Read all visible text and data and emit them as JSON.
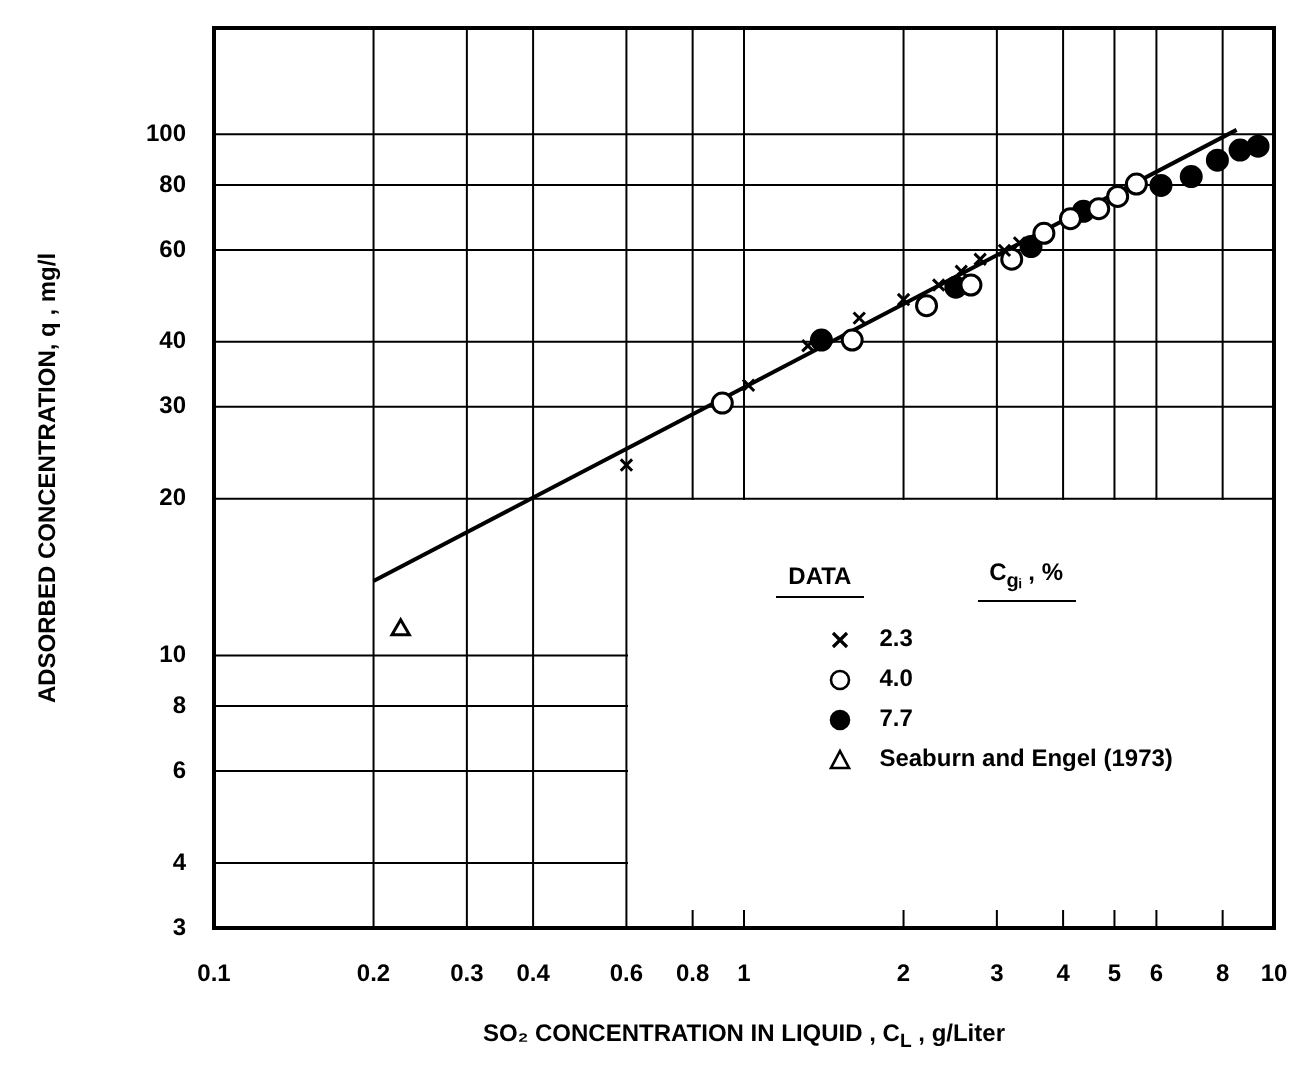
{
  "chart_data": {
    "type": "scatter",
    "xlabel": "SO₂ CONCENTRATION IN LIQUID , C$_{L}$ , g/Liter",
    "ylabel": "ADSORBED CONCENTRATION, q , mg/l",
    "legend_title": "DATA",
    "annotations": [
      "C$_{gᵢ}$ , %"
    ],
    "log": "xy",
    "grid": true,
    "legend": "bottom right",
    "xlim": [
      0.1,
      10
    ],
    "xticks": [
      0.1,
      0.2,
      0.3,
      0.4,
      0.6,
      0.8,
      1,
      2,
      3,
      4,
      5,
      6,
      8,
      10
    ],
    "ylim": [
      3,
      160
    ],
    "yticks": [
      3,
      4,
      6,
      8,
      10,
      20,
      30,
      40,
      60,
      80,
      100
    ],
    "series": [
      {
        "name": "2.3",
        "color": "#000000",
        "marker": "cross",
        "x": [
          0.6,
          1.02,
          1.32,
          1.65,
          2.0,
          2.33,
          2.57,
          2.79,
          3.1,
          3.31
        ],
        "values": [
          23.2,
          33,
          39.3,
          44.4,
          48.2,
          51.4,
          54.6,
          57.6,
          59.9,
          61.9
        ]
      },
      {
        "name": "4.0",
        "color": "#ffffff",
        "marker": "circle",
        "x": [
          0.91,
          1.6,
          2.21,
          2.68,
          3.2,
          3.68,
          4.13,
          4.67,
          5.07,
          5.5
        ],
        "values": [
          30.5,
          40.3,
          46.9,
          51.4,
          57.6,
          64.6,
          68.9,
          72.0,
          76.0,
          80.3
        ]
      },
      {
        "name": "7.7",
        "color": "#000000",
        "marker": "circle",
        "x": [
          1.4,
          2.51,
          3.48,
          4.37,
          6.12,
          6.98,
          7.82,
          8.63,
          9.33
        ],
        "values": [
          40.3,
          50.9,
          60.9,
          71.2,
          79.8,
          83.0,
          89.2,
          93.3,
          94.9
        ]
      },
      {
        "name": "Seaburn and Engel (1973)",
        "color": "#ffffff",
        "marker": "triangle",
        "x": [
          0.225
        ],
        "values": [
          11.2
        ]
      },
      {
        "type": "line",
        "color": "#000000",
        "marker": "none",
        "line_style": "solid",
        "x": [
          0.2,
          8.5
        ],
        "values": [
          13.9,
          102
        ]
      }
    ]
  }
}
